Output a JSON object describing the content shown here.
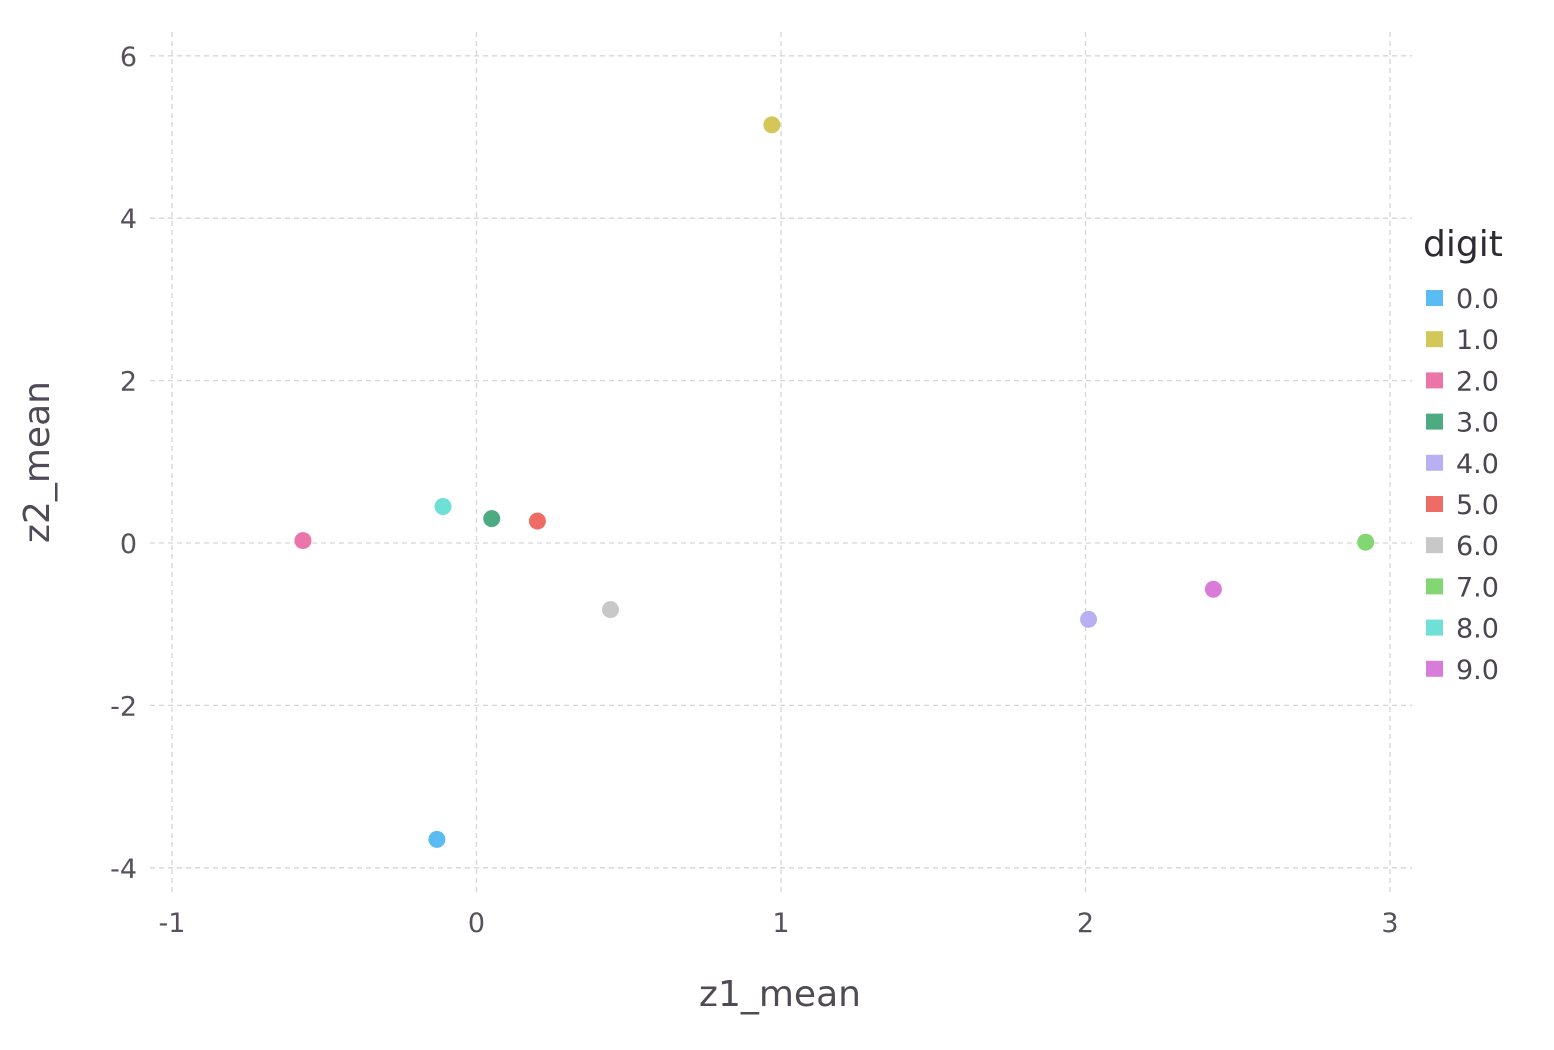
{
  "chart_data": {
    "type": "scatter",
    "xlabel": "z1_mean",
    "ylabel": "z2_mean",
    "xlim": [
      -1,
      3
    ],
    "ylim": [
      -4,
      6
    ],
    "x_ticks": [
      "-1",
      "0",
      "1",
      "2",
      "3"
    ],
    "y_ticks": [
      "-4",
      "-2",
      "0",
      "2",
      "4",
      "6"
    ],
    "grid": true,
    "legend": {
      "title": "digit",
      "placement": "right"
    },
    "series": [
      {
        "name": "0.0",
        "color": "#5bbcf4",
        "x": -0.13,
        "y": -3.65
      },
      {
        "name": "1.0",
        "color": "#d3c75a",
        "x": 0.97,
        "y": 5.15
      },
      {
        "name": "2.0",
        "color": "#eb74a8",
        "x": -0.57,
        "y": 0.03
      },
      {
        "name": "3.0",
        "color": "#4dab83",
        "x": 0.05,
        "y": 0.3
      },
      {
        "name": "4.0",
        "color": "#b9b0f4",
        "x": 2.01,
        "y": -0.94
      },
      {
        "name": "5.0",
        "color": "#ef6c66",
        "x": 0.2,
        "y": 0.27
      },
      {
        "name": "6.0",
        "color": "#c8c8c8",
        "x": 0.44,
        "y": -0.82
      },
      {
        "name": "7.0",
        "color": "#82d773",
        "x": 2.92,
        "y": 0.01
      },
      {
        "name": "8.0",
        "color": "#6ee0d6",
        "x": -0.11,
        "y": 0.45
      },
      {
        "name": "9.0",
        "color": "#d97bd9",
        "x": 2.42,
        "y": -0.57
      }
    ]
  }
}
